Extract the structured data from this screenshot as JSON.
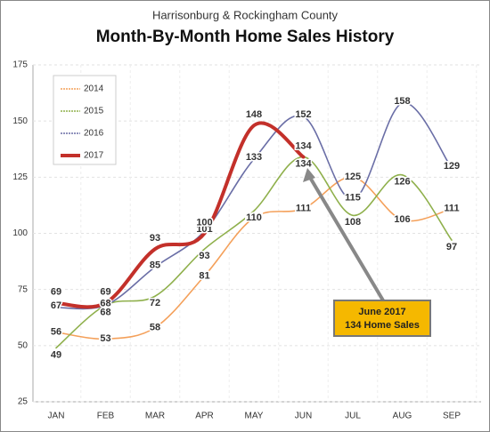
{
  "chart_data": {
    "type": "line",
    "subtitle": "Harrisonburg & Rockingham County",
    "title": "Month-By-Month Home Sales History",
    "categories": [
      "JAN",
      "FEB",
      "MAR",
      "APR",
      "MAY",
      "JUN",
      "JUL",
      "AUG",
      "SEP"
    ],
    "series": [
      {
        "name": "2014",
        "color": "#f4a05a",
        "values": [
          56,
          53,
          58,
          81,
          107,
          111,
          125,
          106,
          111
        ]
      },
      {
        "name": "2015",
        "color": "#8fb04c",
        "values": [
          49,
          68,
          72,
          93,
          110,
          134,
          108,
          126,
          97
        ]
      },
      {
        "name": "2016",
        "color": "#6a6ea6",
        "values": [
          67,
          68,
          85,
          101,
          133,
          152,
          115,
          158,
          129
        ]
      },
      {
        "name": "2017",
        "color": "#c3302a",
        "values": [
          69,
          69,
          93,
          100,
          148,
          134,
          null,
          null,
          null
        ]
      }
    ],
    "ylim": [
      25,
      175
    ],
    "yticks": [
      25,
      50,
      75,
      100,
      125,
      150,
      175
    ],
    "grid": true,
    "legend": "upper left",
    "annotation": [
      "June 2017",
      "134 Home Sales"
    ]
  }
}
